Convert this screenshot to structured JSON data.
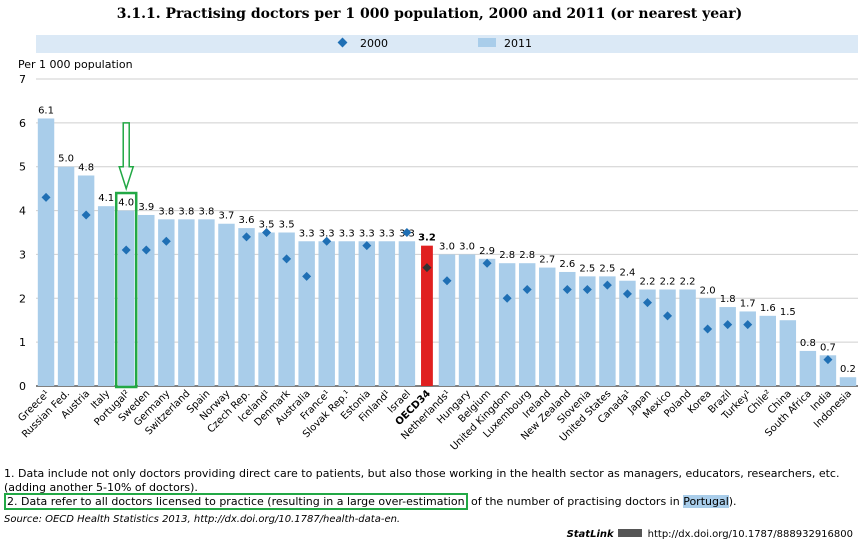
{
  "title": "3.1.1.   Practising doctors per 1 000 population, 2000 and 2011 (or nearest year)",
  "legend": {
    "series_2000": "2000",
    "series_2011": "2011"
  },
  "y_axis_label": "Per 1 000 population",
  "chart_data": {
    "type": "bar",
    "title": "Practising doctors per 1 000 population, 2000 and 2011 (or nearest year)",
    "ylabel": "Per 1 000 population",
    "ylim": [
      0,
      7
    ],
    "yticks": [
      0,
      1,
      2,
      3,
      4,
      5,
      6,
      7
    ],
    "grid": true,
    "legend_position": "top",
    "categories": [
      "Greece¹",
      "Russian Fed.",
      "Austria",
      "Italy",
      "Portugal²",
      "Sweden",
      "Germany",
      "Switzerland",
      "Spain",
      "Norway",
      "Czech Rep.",
      "Iceland¹",
      "Denmark",
      "Australia",
      "France¹",
      "Slovak Rep.¹",
      "Estonia",
      "Finland¹",
      "Israel",
      "OECD34",
      "Netherlands¹",
      "Hungary",
      "Belgium",
      "United Kingdom",
      "Luxembourg",
      "Ireland",
      "New Zealand",
      "Slovenia",
      "United States",
      "Canada¹",
      "Japan",
      "Mexico",
      "Poland",
      "Korea",
      "Brazil",
      "Turkey¹",
      "Chile²",
      "China",
      "South Africa",
      "India",
      "Indonesia"
    ],
    "series": [
      {
        "name": "2011",
        "mark": "bar",
        "values": [
          6.1,
          5.0,
          4.8,
          4.1,
          4.0,
          3.9,
          3.8,
          3.8,
          3.8,
          3.7,
          3.6,
          3.5,
          3.5,
          3.3,
          3.3,
          3.3,
          3.3,
          3.3,
          3.3,
          3.2,
          3.0,
          3.0,
          2.9,
          2.8,
          2.8,
          2.7,
          2.6,
          2.5,
          2.5,
          2.4,
          2.2,
          2.2,
          2.2,
          2.0,
          1.8,
          1.7,
          1.6,
          1.5,
          0.8,
          0.7,
          0.2
        ],
        "labels": [
          "6.1",
          "5.0",
          "4.8",
          "4.1",
          "4.0",
          "3.9",
          "3.8",
          "3.8",
          "3.8",
          "3.7",
          "3.6",
          "3.5",
          "3.5",
          "3.3",
          "3.3",
          "3.3",
          "3.3",
          "3.3",
          "3.3",
          "3.2",
          "3.0",
          "3.0",
          "2.9",
          "2.8",
          "2.8",
          "2.7",
          "2.6",
          "2.5",
          "2.5",
          "2.4",
          "2.2",
          "2.2",
          "2.2",
          "2.0",
          "1.8",
          "1.7",
          "1.6",
          "1.5",
          "0.8",
          "0.7",
          "0.2"
        ]
      },
      {
        "name": "2000",
        "mark": "diamond",
        "values": [
          4.3,
          null,
          3.9,
          null,
          3.1,
          3.1,
          3.3,
          null,
          null,
          null,
          3.4,
          3.5,
          2.9,
          2.5,
          3.3,
          null,
          3.2,
          null,
          3.5,
          2.7,
          2.4,
          null,
          2.8,
          2.0,
          2.2,
          null,
          2.2,
          2.2,
          2.3,
          2.1,
          1.9,
          1.6,
          null,
          1.3,
          1.4,
          1.4,
          null,
          null,
          null,
          0.6,
          null
        ]
      }
    ],
    "highlight": {
      "category": "OECD34",
      "color": "#e02020"
    },
    "annotations": [
      {
        "type": "box-and-arrow",
        "category": "Portugal²",
        "color": "#22a845"
      }
    ]
  },
  "colors": {
    "bar": "#a9cdea",
    "bar_oecd": "#e02020",
    "diamond": "#1f6fb4",
    "diamond_oecd": "#333333",
    "annotation": "#22a845",
    "legend_bg": "#dbe9f6"
  },
  "notes": {
    "note1": "1.  Data include not only doctors providing direct care to patients, but also those working in the health sector as managers, educators, researchers, etc. (adding another 5-10% of doctors).",
    "note2_boxed": "2.  Data refer to all doctors licensed to practice (resulting in a large over-estimation",
    "note2_mid": " of the number of practising doctors in ",
    "note2_hl": "Portugal",
    "note2_end": ").",
    "source": "Source:  OECD Health Statistics 2013, http://dx.doi.org/10.1787/health-data-en."
  },
  "statlink": {
    "label": "StatLink",
    "url": "http://dx.doi.org/10.1787/888932916800"
  }
}
